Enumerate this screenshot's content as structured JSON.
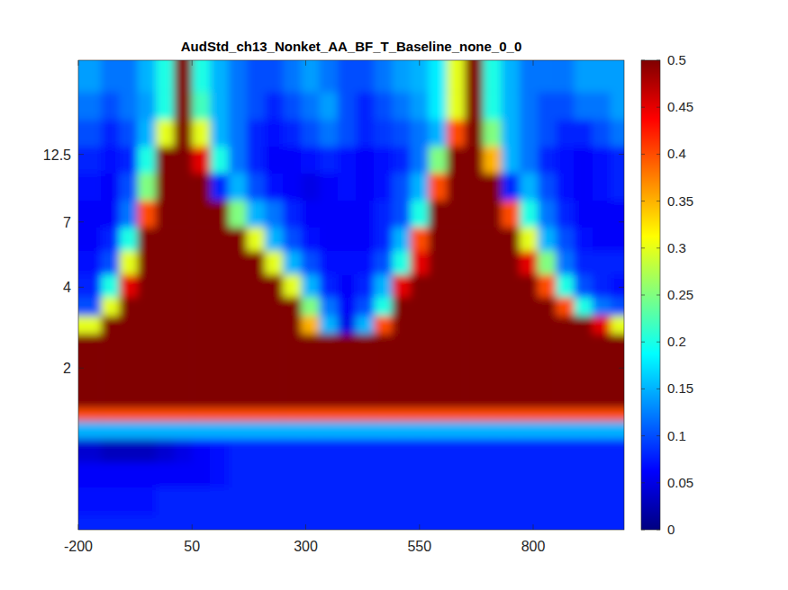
{
  "chart_data": {
    "type": "heatmap",
    "title": "AudStd_ch13_Nonket_AA_BF_T_Baseline_none_0_0",
    "color": "jet",
    "log": "y",
    "x": [
      -170,
      -130,
      -90,
      -50,
      -10,
      30,
      70,
      110,
      150,
      190,
      230,
      270,
      310,
      350,
      390,
      430,
      470,
      510,
      550,
      590,
      630,
      670,
      710,
      750,
      790,
      830,
      870,
      910,
      950,
      990
    ],
    "y": [
      0.5,
      0.65,
      0.8,
      1.0,
      1.2,
      1.35,
      1.5,
      1.8,
      2.1,
      2.5,
      2.9,
      3.4,
      4,
      5,
      6,
      7.5,
      9.5,
      12,
      15,
      19,
      24
    ],
    "xlim": [
      -200,
      1000
    ],
    "xticks": [
      -200,
      50,
      300,
      550,
      800
    ],
    "ylim": [
      0.5,
      28
    ],
    "yticks": [
      2,
      4,
      7,
      12.5
    ],
    "clim": [
      0,
      0.5
    ],
    "cticks": [
      0,
      0.05,
      0.1,
      0.15,
      0.2,
      0.25,
      0.3,
      0.35,
      0.4,
      0.45,
      0.5
    ],
    "values": [
      [
        0.08,
        0.08,
        0.08,
        0.08,
        0.08,
        0.08,
        0.08,
        0.08,
        0.08,
        0.08,
        0.08,
        0.08,
        0.08,
        0.08,
        0.08,
        0.08,
        0.08,
        0.08,
        0.08,
        0.08,
        0.08,
        0.08,
        0.08,
        0.08,
        0.08,
        0.08,
        0.08,
        0.08,
        0.08,
        0.08
      ],
      [
        0.07,
        0.07,
        0.07,
        0.07,
        0.08,
        0.08,
        0.08,
        0.08,
        0.08,
        0.08,
        0.08,
        0.08,
        0.08,
        0.08,
        0.08,
        0.08,
        0.08,
        0.08,
        0.08,
        0.08,
        0.08,
        0.08,
        0.08,
        0.08,
        0.08,
        0.08,
        0.08,
        0.08,
        0.08,
        0.08
      ],
      [
        0.06,
        0.06,
        0.06,
        0.06,
        0.06,
        0.06,
        0.06,
        0.07,
        0.08,
        0.08,
        0.08,
        0.08,
        0.08,
        0.08,
        0.08,
        0.08,
        0.08,
        0.08,
        0.08,
        0.08,
        0.08,
        0.08,
        0.08,
        0.08,
        0.08,
        0.08,
        0.08,
        0.08,
        0.08,
        0.08
      ],
      [
        0.04,
        0.03,
        0.03,
        0.03,
        0.04,
        0.05,
        0.06,
        0.07,
        0.08,
        0.08,
        0.08,
        0.08,
        0.08,
        0.08,
        0.08,
        0.08,
        0.08,
        0.08,
        0.08,
        0.08,
        0.08,
        0.08,
        0.08,
        0.08,
        0.08,
        0.08,
        0.08,
        0.08,
        0.08,
        0.08
      ],
      [
        0.15,
        0.15,
        0.15,
        0.15,
        0.15,
        0.15,
        0.15,
        0.15,
        0.15,
        0.15,
        0.15,
        0.15,
        0.15,
        0.15,
        0.15,
        0.15,
        0.15,
        0.15,
        0.15,
        0.15,
        0.15,
        0.15,
        0.15,
        0.15,
        0.15,
        0.15,
        0.15,
        0.15,
        0.15,
        0.15
      ],
      [
        0.4,
        0.4,
        0.4,
        0.4,
        0.4,
        0.4,
        0.4,
        0.4,
        0.4,
        0.4,
        0.4,
        0.4,
        0.4,
        0.4,
        0.4,
        0.4,
        0.4,
        0.4,
        0.4,
        0.4,
        0.4,
        0.4,
        0.4,
        0.4,
        0.4,
        0.4,
        0.4,
        0.4,
        0.4,
        0.4
      ],
      [
        0.6,
        0.6,
        0.6,
        0.6,
        0.6,
        0.6,
        0.6,
        0.6,
        0.6,
        0.6,
        0.6,
        0.6,
        0.6,
        0.6,
        0.6,
        0.6,
        0.6,
        0.6,
        0.6,
        0.6,
        0.6,
        0.6,
        0.6,
        0.6,
        0.6,
        0.6,
        0.6,
        0.6,
        0.6,
        0.6
      ],
      [
        0.8,
        0.8,
        0.8,
        0.8,
        0.8,
        0.8,
        0.8,
        0.8,
        0.8,
        0.8,
        0.8,
        0.8,
        0.8,
        0.8,
        0.8,
        0.8,
        0.8,
        0.8,
        0.8,
        0.8,
        0.8,
        0.8,
        0.8,
        0.8,
        0.8,
        0.8,
        0.8,
        0.8,
        0.8,
        0.8
      ],
      [
        0.85,
        0.85,
        0.85,
        0.85,
        0.85,
        0.85,
        0.85,
        0.85,
        0.85,
        0.85,
        0.85,
        0.85,
        0.85,
        0.85,
        0.85,
        0.85,
        0.85,
        0.85,
        0.85,
        0.85,
        0.85,
        0.85,
        0.85,
        0.85,
        0.85,
        0.85,
        0.85,
        0.85,
        0.85,
        0.85
      ],
      [
        0.5,
        0.6,
        0.7,
        0.8,
        0.85,
        0.9,
        0.85,
        0.8,
        0.75,
        0.7,
        0.65,
        0.6,
        0.55,
        0.5,
        0.5,
        0.5,
        0.55,
        0.65,
        0.7,
        0.8,
        0.85,
        0.9,
        0.85,
        0.8,
        0.75,
        0.7,
        0.65,
        0.6,
        0.55,
        0.5
      ],
      [
        0.3,
        0.55,
        0.65,
        0.7,
        0.8,
        0.9,
        0.8,
        0.75,
        0.7,
        0.65,
        0.6,
        0.55,
        0.35,
        0.15,
        0.05,
        0.15,
        0.4,
        0.6,
        0.7,
        0.75,
        0.8,
        0.9,
        0.8,
        0.75,
        0.7,
        0.65,
        0.6,
        0.55,
        0.45,
        0.3
      ],
      [
        0.1,
        0.3,
        0.55,
        0.7,
        0.8,
        0.9,
        0.8,
        0.75,
        0.7,
        0.65,
        0.6,
        0.5,
        0.25,
        0.12,
        0.06,
        0.1,
        0.2,
        0.5,
        0.65,
        0.75,
        0.8,
        0.9,
        0.8,
        0.75,
        0.65,
        0.55,
        0.4,
        0.2,
        0.12,
        0.1
      ],
      [
        0.08,
        0.2,
        0.45,
        0.6,
        0.75,
        0.9,
        0.75,
        0.7,
        0.65,
        0.6,
        0.5,
        0.3,
        0.15,
        0.08,
        0.06,
        0.08,
        0.15,
        0.45,
        0.6,
        0.7,
        0.75,
        0.9,
        0.75,
        0.7,
        0.55,
        0.4,
        0.2,
        0.1,
        0.08,
        0.07
      ],
      [
        0.07,
        0.1,
        0.3,
        0.55,
        0.7,
        0.9,
        0.7,
        0.65,
        0.6,
        0.5,
        0.3,
        0.15,
        0.1,
        0.07,
        0.07,
        0.07,
        0.1,
        0.2,
        0.45,
        0.6,
        0.7,
        0.9,
        0.7,
        0.65,
        0.45,
        0.25,
        0.12,
        0.08,
        0.08,
        0.08
      ],
      [
        0.06,
        0.08,
        0.2,
        0.5,
        0.7,
        0.9,
        0.7,
        0.65,
        0.5,
        0.3,
        0.15,
        0.1,
        0.07,
        0.06,
        0.06,
        0.06,
        0.08,
        0.15,
        0.4,
        0.6,
        0.7,
        0.9,
        0.7,
        0.5,
        0.3,
        0.15,
        0.1,
        0.07,
        0.06,
        0.06
      ],
      [
        0.06,
        0.06,
        0.12,
        0.4,
        0.65,
        0.9,
        0.7,
        0.5,
        0.25,
        0.15,
        0.12,
        0.08,
        0.06,
        0.06,
        0.06,
        0.06,
        0.08,
        0.1,
        0.2,
        0.5,
        0.7,
        0.9,
        0.6,
        0.4,
        0.2,
        0.12,
        0.08,
        0.06,
        0.06,
        0.06
      ],
      [
        0.07,
        0.06,
        0.1,
        0.25,
        0.55,
        0.9,
        0.5,
        0.08,
        0.15,
        0.1,
        0.07,
        0.06,
        0.05,
        0.06,
        0.07,
        0.06,
        0.07,
        0.1,
        0.15,
        0.4,
        0.65,
        0.9,
        0.5,
        0.08,
        0.15,
        0.1,
        0.07,
        0.06,
        0.07,
        0.08
      ],
      [
        0.08,
        0.07,
        0.08,
        0.2,
        0.5,
        0.9,
        0.45,
        0.2,
        0.12,
        0.08,
        0.06,
        0.06,
        0.07,
        0.08,
        0.07,
        0.06,
        0.07,
        0.08,
        0.12,
        0.25,
        0.55,
        0.9,
        0.35,
        0.15,
        0.12,
        0.08,
        0.07,
        0.06,
        0.07,
        0.08
      ],
      [
        0.1,
        0.08,
        0.1,
        0.15,
        0.3,
        0.9,
        0.3,
        0.15,
        0.12,
        0.08,
        0.07,
        0.08,
        0.1,
        0.12,
        0.1,
        0.08,
        0.09,
        0.1,
        0.12,
        0.15,
        0.4,
        0.9,
        0.25,
        0.15,
        0.12,
        0.1,
        0.08,
        0.08,
        0.1,
        0.12
      ],
      [
        0.12,
        0.1,
        0.12,
        0.14,
        0.2,
        0.9,
        0.22,
        0.15,
        0.12,
        0.1,
        0.08,
        0.1,
        0.12,
        0.14,
        0.1,
        0.08,
        0.1,
        0.12,
        0.14,
        0.18,
        0.3,
        0.9,
        0.2,
        0.15,
        0.12,
        0.1,
        0.1,
        0.12,
        0.12,
        0.14
      ],
      [
        0.14,
        0.12,
        0.12,
        0.15,
        0.2,
        0.9,
        0.2,
        0.15,
        0.12,
        0.1,
        0.1,
        0.12,
        0.14,
        0.12,
        0.1,
        0.1,
        0.12,
        0.14,
        0.15,
        0.18,
        0.3,
        0.9,
        0.2,
        0.15,
        0.12,
        0.12,
        0.12,
        0.14,
        0.14,
        0.14
      ]
    ]
  }
}
